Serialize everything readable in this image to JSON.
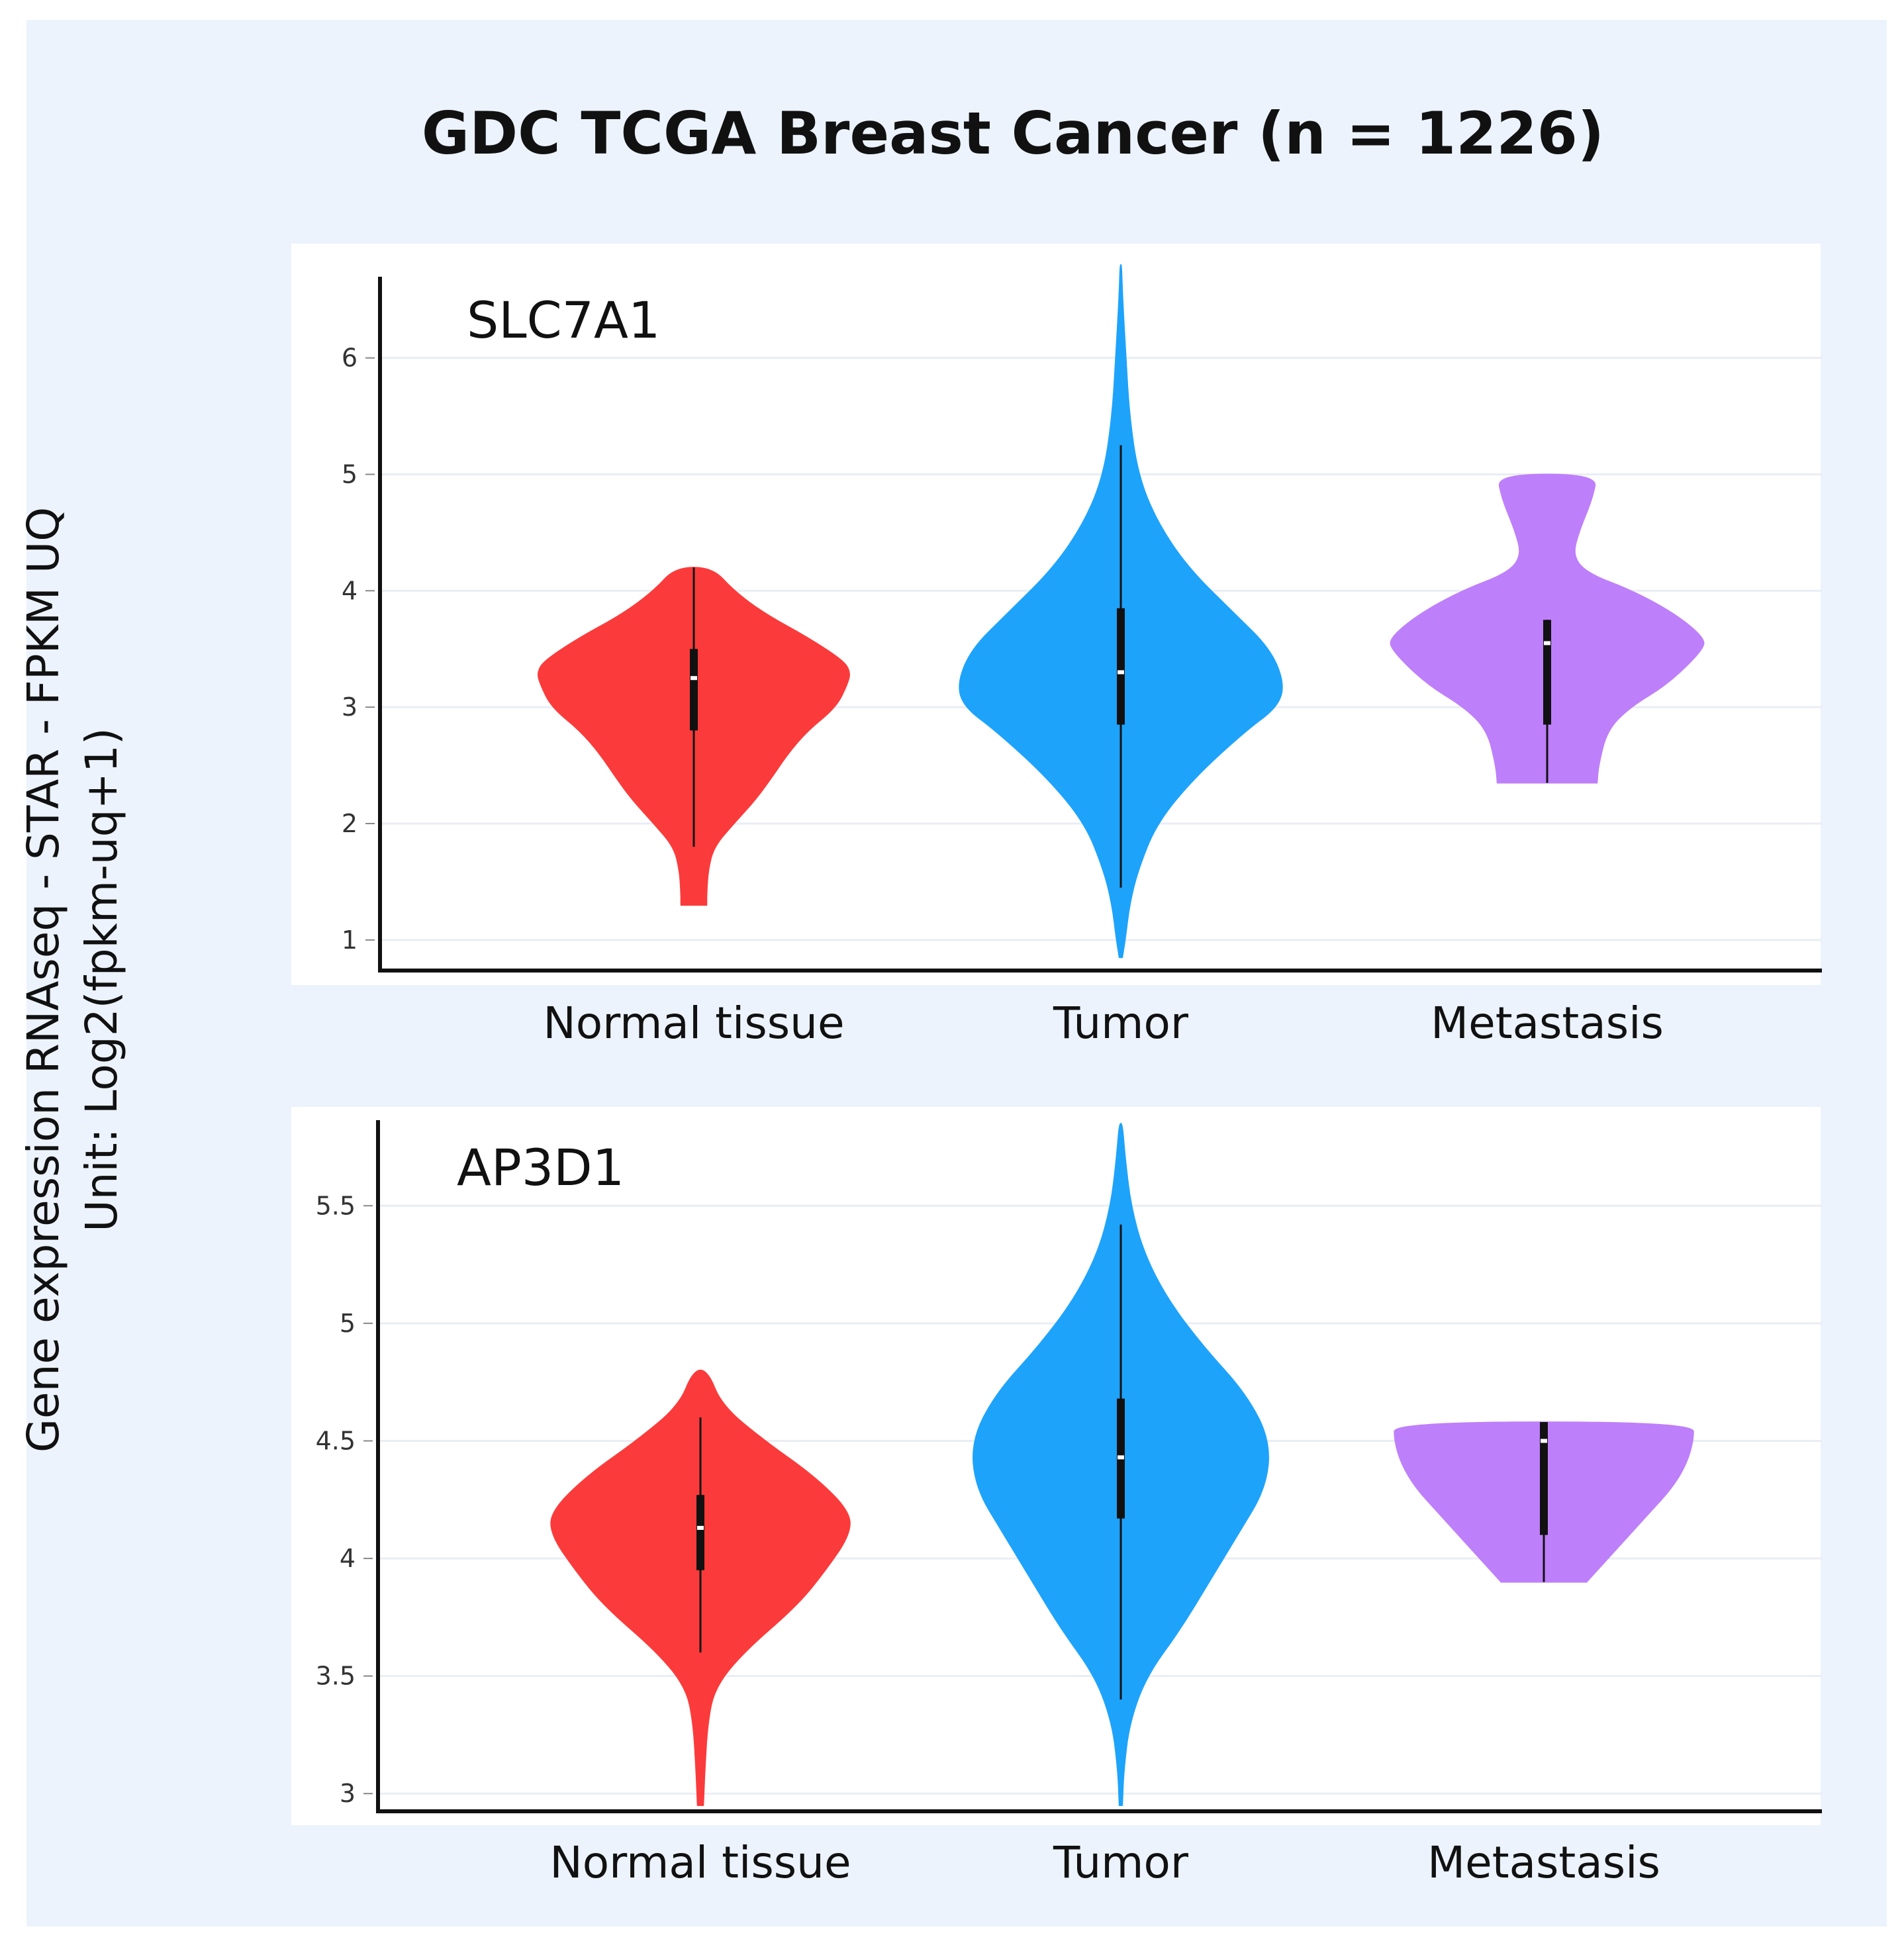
{
  "title": "GDC TCGA Breast Cancer (n = 1226)",
  "ylabel_line1": "Gene expression RNAseq - STAR - FPKM UQ",
  "ylabel_line2": "Unit: Log2(fpkm-uq+1)",
  "colors": {
    "normal": "#fb3b3b",
    "tumor": "#1ea3fb",
    "metastasis": "#be7ffb",
    "background": "#ecf3fd"
  },
  "chart_data": [
    {
      "type": "violin",
      "gene": "SLC7A1",
      "categories": [
        "Normal tissue",
        "Tumor",
        "Metastasis"
      ],
      "ylim": [
        0.8,
        6.8
      ],
      "yticks": [
        1,
        2,
        3,
        4,
        5,
        6
      ],
      "grid": true,
      "groups": [
        {
          "name": "Normal tissue",
          "color_key": "normal",
          "min": 1.3,
          "max": 4.2,
          "whisker_low": 1.8,
          "q1": 2.8,
          "median": 3.25,
          "q3": 3.5,
          "whisker_high": 4.2,
          "profile": [
            [
              1.3,
              0.09
            ],
            [
              1.4,
              0.09
            ],
            [
              1.6,
              0.1
            ],
            [
              1.8,
              0.14
            ],
            [
              2.0,
              0.28
            ],
            [
              2.2,
              0.43
            ],
            [
              2.4,
              0.55
            ],
            [
              2.6,
              0.66
            ],
            [
              2.8,
              0.8
            ],
            [
              3.0,
              1.0
            ],
            [
              3.2,
              1.08
            ],
            [
              3.3,
              1.1
            ],
            [
              3.4,
              1.05
            ],
            [
              3.6,
              0.8
            ],
            [
              3.8,
              0.5
            ],
            [
              4.0,
              0.28
            ],
            [
              4.2,
              0.13
            ]
          ]
        },
        {
          "name": "Tumor",
          "color_key": "tumor",
          "min": 0.85,
          "max": 6.8,
          "whisker_low": 1.45,
          "q1": 2.85,
          "median": 3.3,
          "q3": 3.85,
          "whisker_high": 5.25,
          "profile": [
            [
              0.85,
              0.01
            ],
            [
              1.0,
              0.03
            ],
            [
              1.3,
              0.06
            ],
            [
              1.6,
              0.12
            ],
            [
              2.0,
              0.25
            ],
            [
              2.4,
              0.52
            ],
            [
              2.8,
              0.88
            ],
            [
              3.0,
              1.1
            ],
            [
              3.2,
              1.15
            ],
            [
              3.5,
              1.05
            ],
            [
              3.8,
              0.8
            ],
            [
              4.2,
              0.47
            ],
            [
              4.6,
              0.25
            ],
            [
              5.0,
              0.12
            ],
            [
              5.5,
              0.06
            ],
            [
              6.0,
              0.035
            ],
            [
              6.5,
              0.012
            ],
            [
              6.8,
              0.004
            ]
          ]
        },
        {
          "name": "Metastasis",
          "color_key": "metastasis",
          "min": 2.35,
          "max": 5.0,
          "whisker_low": 2.35,
          "q1": 2.85,
          "median": 3.55,
          "q3": 3.75,
          "whisker_high": 3.75,
          "profile": [
            [
              2.35,
              0.35
            ],
            [
              2.5,
              0.36
            ],
            [
              2.8,
              0.42
            ],
            [
              3.0,
              0.58
            ],
            [
              3.2,
              0.85
            ],
            [
              3.5,
              1.1
            ],
            [
              3.6,
              1.1
            ],
            [
              3.8,
              0.9
            ],
            [
              4.0,
              0.6
            ],
            [
              4.15,
              0.28
            ],
            [
              4.3,
              0.18
            ],
            [
              4.5,
              0.22
            ],
            [
              4.8,
              0.32
            ],
            [
              5.0,
              0.35
            ]
          ]
        }
      ]
    },
    {
      "type": "violin",
      "gene": "AP3D1",
      "categories": [
        "Normal tissue",
        "Tumor",
        "Metastasis"
      ],
      "ylim": [
        2.95,
        5.85
      ],
      "yticks": [
        3,
        3.5,
        4,
        4.5,
        5,
        5.5
      ],
      "grid": true,
      "groups": [
        {
          "name": "Normal tissue",
          "color_key": "normal",
          "min": 2.95,
          "max": 4.8,
          "whisker_low": 3.6,
          "q1": 3.95,
          "median": 4.13,
          "q3": 4.27,
          "whisker_high": 4.6,
          "profile": [
            [
              2.95,
              0.02
            ],
            [
              3.1,
              0.03
            ],
            [
              3.3,
              0.05
            ],
            [
              3.45,
              0.1
            ],
            [
              3.6,
              0.3
            ],
            [
              3.8,
              0.68
            ],
            [
              3.95,
              0.88
            ],
            [
              4.1,
              1.05
            ],
            [
              4.2,
              1.05
            ],
            [
              4.35,
              0.8
            ],
            [
              4.5,
              0.45
            ],
            [
              4.65,
              0.15
            ],
            [
              4.8,
              0.05
            ]
          ]
        },
        {
          "name": "Tumor",
          "color_key": "tumor",
          "min": 2.95,
          "max": 5.85,
          "whisker_low": 3.4,
          "q1": 4.17,
          "median": 4.43,
          "q3": 4.68,
          "whisker_high": 5.42,
          "profile": [
            [
              2.95,
              0.01
            ],
            [
              3.1,
              0.02
            ],
            [
              3.3,
              0.06
            ],
            [
              3.5,
              0.18
            ],
            [
              3.7,
              0.42
            ],
            [
              3.9,
              0.62
            ],
            [
              4.1,
              0.82
            ],
            [
              4.3,
              1.02
            ],
            [
              4.5,
              1.05
            ],
            [
              4.7,
              0.88
            ],
            [
              4.9,
              0.58
            ],
            [
              5.1,
              0.33
            ],
            [
              5.3,
              0.16
            ],
            [
              5.5,
              0.07
            ],
            [
              5.7,
              0.03
            ],
            [
              5.85,
              0.01
            ]
          ]
        },
        {
          "name": "Metastasis",
          "color_key": "metastasis",
          "min": 3.9,
          "max": 4.58,
          "whisker_low": 3.9,
          "q1": 4.1,
          "median": 4.5,
          "q3": 4.58,
          "whisker_high": 4.58,
          "profile": [
            [
              3.9,
              0.3
            ],
            [
              4.0,
              0.45
            ],
            [
              4.1,
              0.6
            ],
            [
              4.2,
              0.75
            ],
            [
              4.3,
              0.9
            ],
            [
              4.4,
              1.0
            ],
            [
              4.5,
              1.05
            ],
            [
              4.58,
              1.05
            ]
          ]
        }
      ]
    }
  ]
}
